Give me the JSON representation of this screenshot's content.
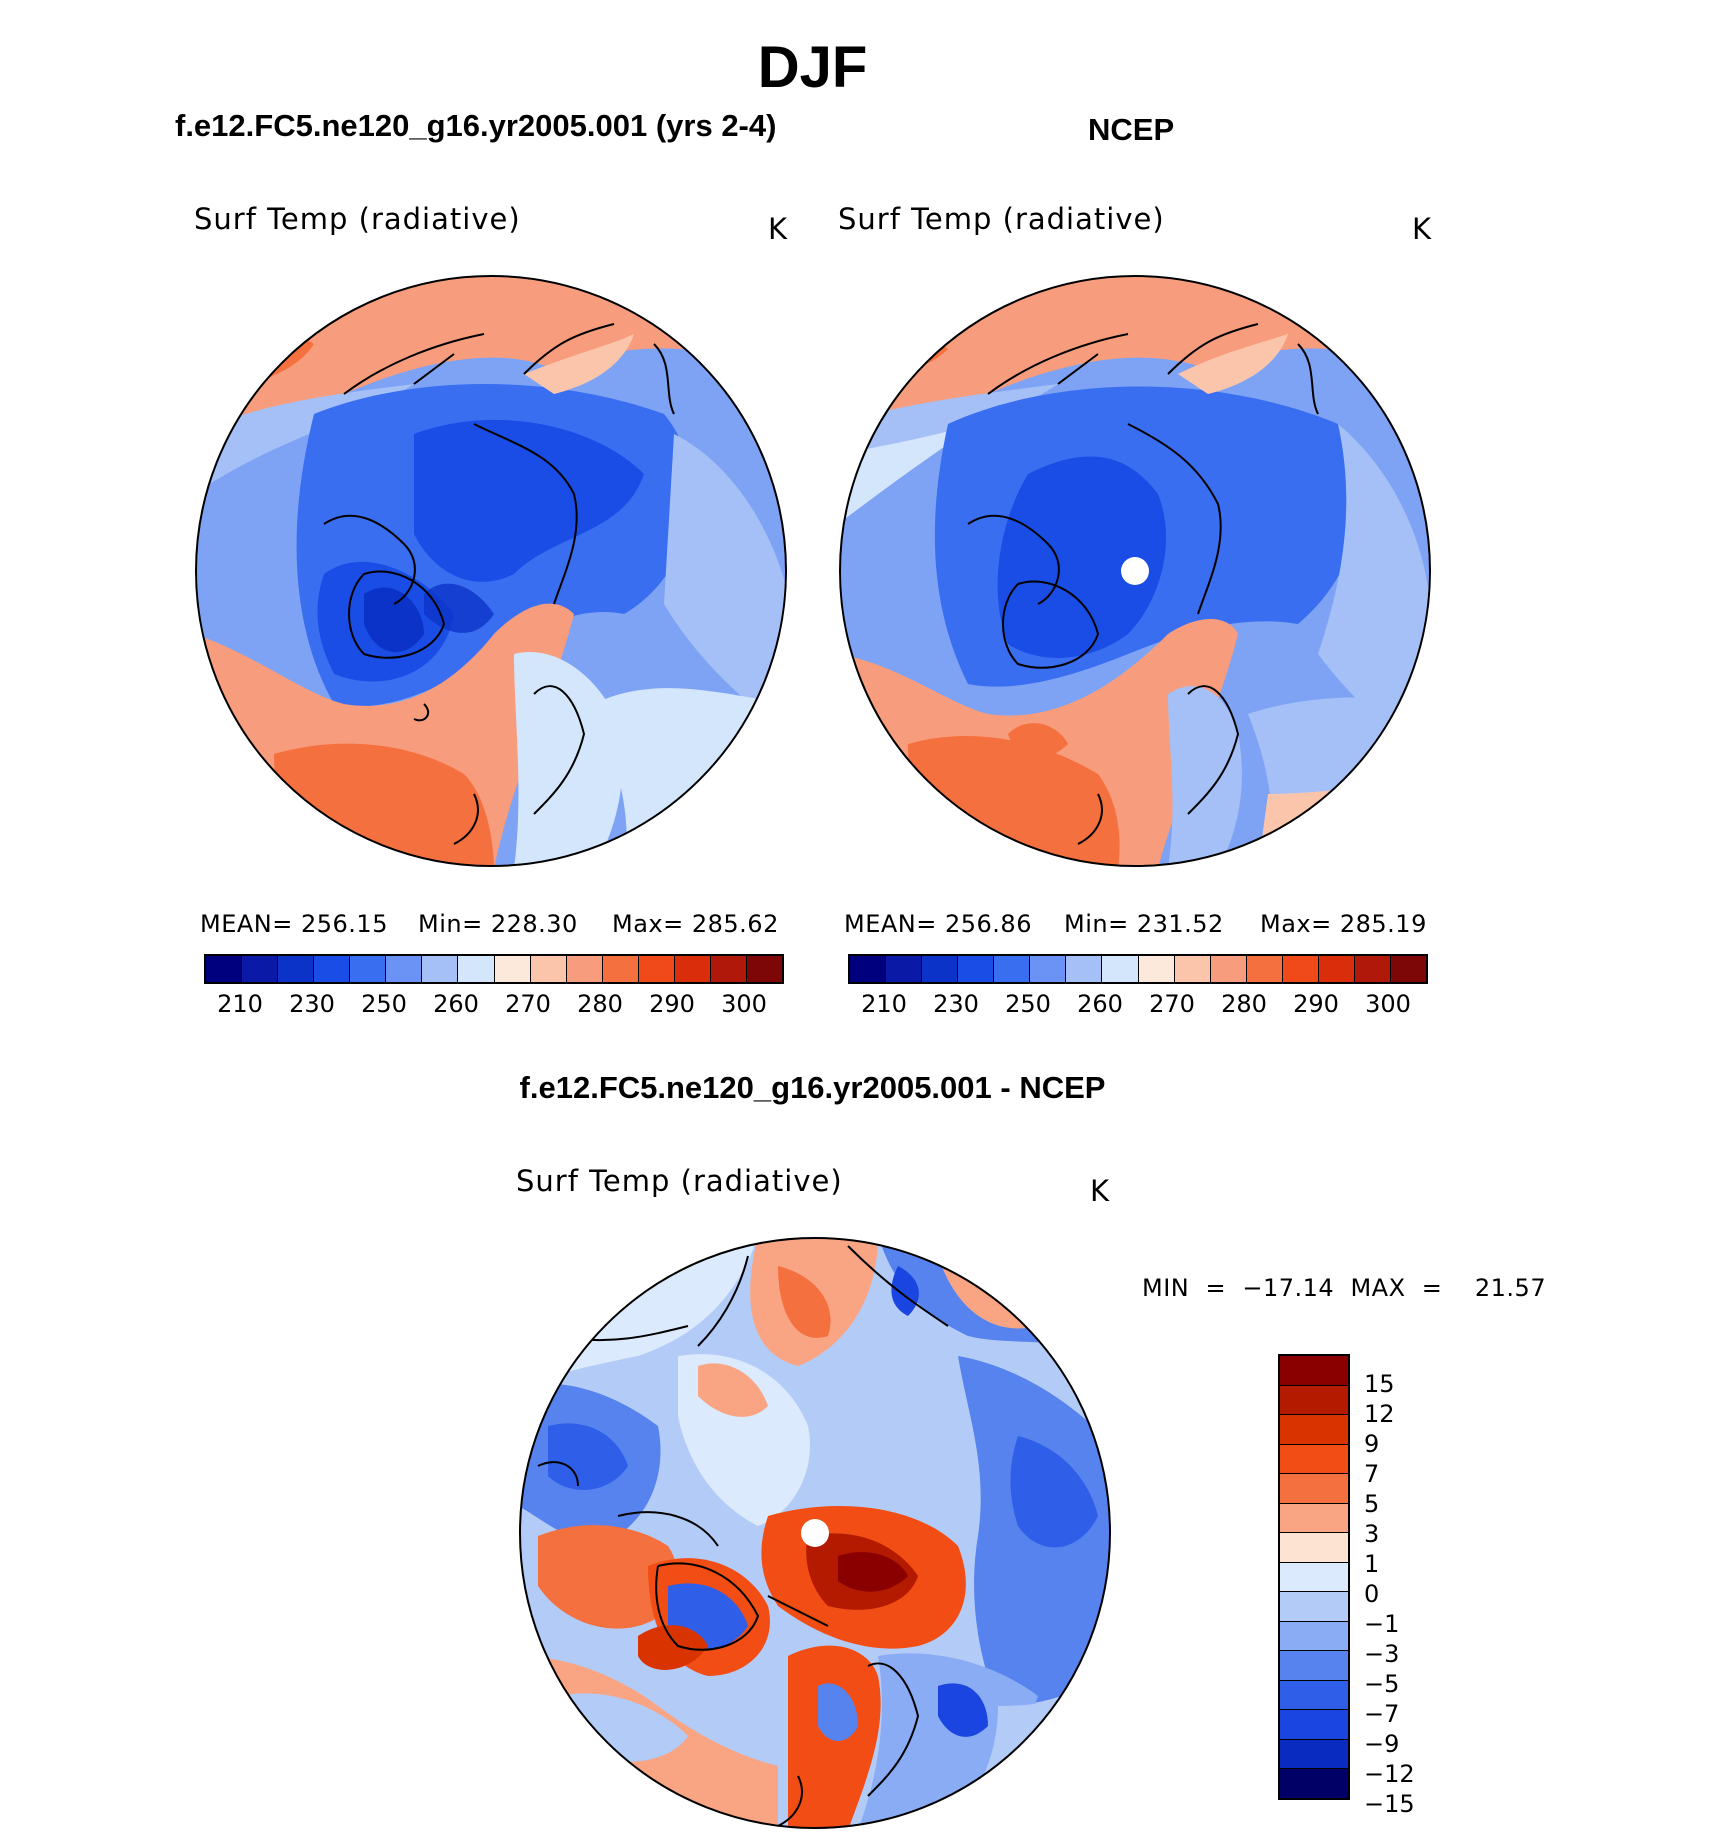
{
  "title": "DJF",
  "panels": {
    "model": {
      "title": "f.e12.FC5.ne120_g16.yr2005.001 (yrs 2-4)",
      "variable": "Surf Temp (radiative)",
      "units": "K",
      "stats": {
        "mean": "MEAN=  256.15",
        "min": "Min=  228.30",
        "max": "Max=  285.62"
      }
    },
    "obs": {
      "title": "NCEP",
      "variable": "Surf Temp (radiative)",
      "units": "K",
      "stats": {
        "mean": "MEAN=  256.86",
        "min": "Min=  231.52",
        "max": "Max=  285.19"
      }
    },
    "diff": {
      "title": "f.e12.FC5.ne120_g16.yr2005.001 - NCEP",
      "variable": "Surf Temp (radiative)",
      "units": "K",
      "minmax": "MIN  =  −17.14  MAX  =    21.57"
    }
  },
  "abs_colorbar": {
    "colors": [
      "#00007f",
      "#0a1aa6",
      "#0c33c8",
      "#1a4de6",
      "#3a6ef0",
      "#6b93f5",
      "#a5c0f7",
      "#d3e6fb",
      "#fde9dc",
      "#fbc5ab",
      "#f79d7d",
      "#f5703f",
      "#f04a1a",
      "#d92d0c",
      "#b0190a",
      "#7d0606"
    ],
    "labels": [
      "210",
      "230",
      "250",
      "260",
      "270",
      "280",
      "290",
      "300"
    ]
  },
  "diff_colorbar": {
    "colors": [
      "#8a0000",
      "#b31a00",
      "#d93300",
      "#f24d14",
      "#f5703f",
      "#f9a584",
      "#fde3d2",
      "#dbeafd",
      "#b3cbf7",
      "#8aacf4",
      "#5783ee",
      "#2f5ee8",
      "#1a45e0",
      "#0a2bc0",
      "#000066"
    ],
    "labels": [
      "15",
      "12",
      "9",
      "7",
      "5",
      "3",
      "1",
      "0",
      "−1",
      "−3",
      "−5",
      "−7",
      "−9",
      "−12",
      "−15"
    ]
  },
  "icons": {
    "pole_marker": "north-pole-missing-data-marker"
  }
}
